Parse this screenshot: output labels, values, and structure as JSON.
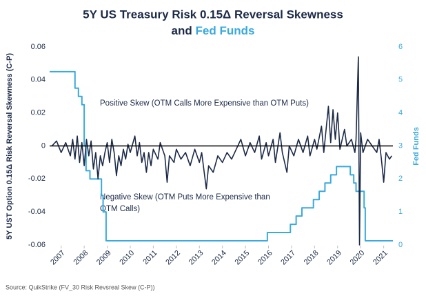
{
  "chart_data": {
    "type": "line",
    "title": {
      "line1": "5Y US Treasury Risk 0.15Δ Reversal Skewness",
      "line2": "and",
      "highlight": "Fed Funds"
    },
    "ylabel": "5Y UST Option 0.15Δ Risk Reversal Skewness (C-P)",
    "y2label": "Fed Funds",
    "source": "Source: QuikStrike (FV_30 Risk Revsreal Skew (C-P))",
    "annotations": [
      "Positive Skew (OTM Calls More Expensive than OTM Puts)",
      "Negative Skew (OTM Puts More Expensive than",
      "OTM Calls)"
    ],
    "xlim": [
      2006.5,
      2021.4
    ],
    "xticks": [
      2007,
      2008,
      2009,
      2010,
      2011,
      2012,
      2013,
      2014,
      2015,
      2016,
      2017,
      2018,
      2019,
      2020,
      2021
    ],
    "ylim": [
      -0.06,
      0.06
    ],
    "yticks": [
      -0.06,
      -0.04,
      -0.02,
      0,
      0.02,
      0.04,
      0.06
    ],
    "y2lim": [
      0,
      6
    ],
    "y2ticks": [
      0,
      1,
      2,
      3,
      4,
      5,
      6
    ],
    "reference_line": 0,
    "series": [
      {
        "name": "Fed Funds",
        "color": "#3aa9dc",
        "axis": "y2",
        "x": [
          2006.5,
          2007.6,
          2007.6,
          2007.75,
          2007.75,
          2007.9,
          2007.9,
          2008.0,
          2008.0,
          2008.08,
          2008.08,
          2008.25,
          2008.25,
          2008.75,
          2008.75,
          2008.82,
          2008.82,
          2008.95,
          2008.95,
          2015.95,
          2015.95,
          2016.95,
          2016.95,
          2017.2,
          2017.2,
          2017.45,
          2017.45,
          2017.95,
          2017.95,
          2018.2,
          2018.2,
          2018.45,
          2018.45,
          2018.7,
          2018.7,
          2018.95,
          2018.95,
          2019.55,
          2019.55,
          2019.7,
          2019.7,
          2019.8,
          2019.8,
          2020.15,
          2020.15,
          2020.2,
          2020.2,
          2021.4
        ],
        "values": [
          5.25,
          5.25,
          4.75,
          4.75,
          4.5,
          4.5,
          4.25,
          4.25,
          3.0,
          3.0,
          2.25,
          2.25,
          2.0,
          2.0,
          1.5,
          1.5,
          1.0,
          1.0,
          0.125,
          0.125,
          0.375,
          0.375,
          0.625,
          0.625,
          0.875,
          0.875,
          1.125,
          1.125,
          1.375,
          1.375,
          1.625,
          1.625,
          1.875,
          1.875,
          2.125,
          2.125,
          2.375,
          2.375,
          2.125,
          2.125,
          1.875,
          1.875,
          1.625,
          1.625,
          1.125,
          1.125,
          0.125,
          0.125
        ]
      },
      {
        "name": "5Y UST Option 0.15Δ Risk Reversal Skewness",
        "color": "#1b2a47",
        "axis": "y",
        "x": [
          2006.6,
          2006.8,
          2007.0,
          2007.2,
          2007.4,
          2007.5,
          2007.6,
          2007.7,
          2007.8,
          2007.9,
          2008.0,
          2008.1,
          2008.2,
          2008.3,
          2008.4,
          2008.5,
          2008.6,
          2008.7,
          2008.8,
          2008.9,
          2009.0,
          2009.1,
          2009.2,
          2009.3,
          2009.4,
          2009.5,
          2009.6,
          2009.7,
          2009.8,
          2009.9,
          2010.0,
          2010.2,
          2010.3,
          2010.4,
          2010.5,
          2010.6,
          2010.7,
          2010.8,
          2010.9,
          2011.0,
          2011.2,
          2011.3,
          2011.5,
          2011.6,
          2011.7,
          2011.9,
          2012.0,
          2012.2,
          2012.4,
          2012.6,
          2012.8,
          2013.0,
          2013.1,
          2013.3,
          2013.4,
          2013.6,
          2013.8,
          2014.0,
          2014.2,
          2014.4,
          2014.6,
          2014.8,
          2015.0,
          2015.2,
          2015.4,
          2015.6,
          2015.7,
          2015.9,
          2016.0,
          2016.2,
          2016.3,
          2016.5,
          2016.6,
          2016.8,
          2016.9,
          2017.1,
          2017.3,
          2017.5,
          2017.7,
          2017.8,
          2018.0,
          2018.1,
          2018.3,
          2018.4,
          2018.6,
          2018.7,
          2018.8,
          2018.9,
          2019.0,
          2019.1,
          2019.3,
          2019.4,
          2019.6,
          2019.75,
          2019.8,
          2019.9,
          2019.95,
          2020.0,
          2020.1,
          2020.3,
          2020.5,
          2020.7,
          2020.8,
          2020.9,
          2021.0,
          2021.1,
          2021.25,
          2021.35
        ],
        "values": [
          0.0,
          0.003,
          -0.004,
          0.002,
          -0.006,
          0.004,
          -0.008,
          0.006,
          -0.01,
          0.002,
          -0.012,
          0.004,
          -0.006,
          0.003,
          -0.014,
          -0.004,
          -0.02,
          -0.006,
          -0.012,
          -0.004,
          0.002,
          -0.01,
          0.004,
          -0.004,
          -0.018,
          -0.006,
          -0.012,
          -0.002,
          -0.008,
          0.001,
          -0.004,
          0.006,
          -0.006,
          0.002,
          -0.01,
          -0.004,
          -0.016,
          -0.004,
          -0.012,
          -0.002,
          -0.008,
          0.002,
          -0.006,
          -0.022,
          -0.006,
          -0.01,
          -0.002,
          -0.008,
          -0.004,
          -0.012,
          -0.002,
          -0.01,
          -0.004,
          -0.026,
          -0.012,
          -0.016,
          -0.006,
          -0.01,
          -0.004,
          -0.008,
          -0.002,
          0.004,
          -0.006,
          0.002,
          -0.004,
          0.006,
          -0.008,
          0.002,
          -0.006,
          0.004,
          -0.01,
          0.008,
          -0.004,
          -0.016,
          0.0,
          -0.006,
          0.004,
          -0.004,
          0.006,
          -0.006,
          0.004,
          -0.002,
          0.012,
          -0.004,
          0.024,
          0.002,
          0.022,
          0.004,
          0.02,
          -0.002,
          0.01,
          0.0,
          0.004,
          -0.004,
          0.004,
          0.054,
          -0.06,
          0.008,
          -0.004,
          0.004,
          0.0,
          -0.004,
          0.004,
          -0.008,
          -0.022,
          -0.004,
          -0.008,
          -0.006
        ]
      }
    ]
  }
}
